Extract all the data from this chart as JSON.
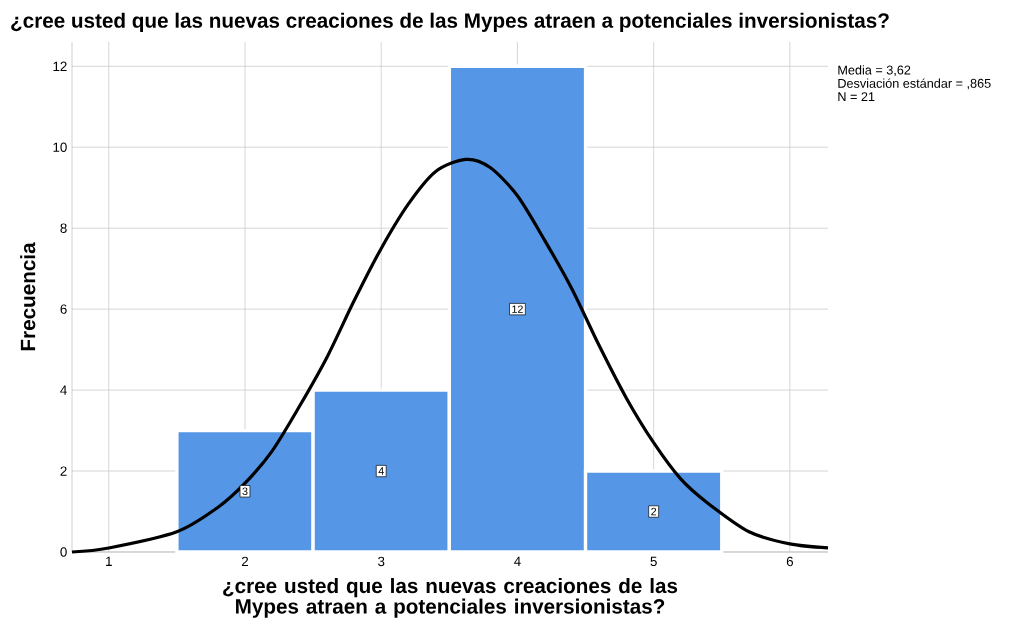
{
  "chart_data": {
    "type": "histogram",
    "title": "¿cree usted que las nuevas creaciones de las Mypes atraen a potenciales inversionistas?",
    "xlabel": "¿cree usted que las nuevas creaciones de las Mypes atraen a potenciales inversionistas?",
    "ylabel": "Frecuencia",
    "bins": [
      1.5,
      2.5,
      3.5,
      4.5,
      5.5
    ],
    "values": [
      3,
      4,
      12,
      2
    ],
    "color": "#5596e6",
    "value_labels": [
      "3",
      "4",
      "12",
      "2"
    ],
    "series": [
      {
        "type": "line",
        "color": "#000000",
        "x": [
          0.73,
          1.0,
          1.5,
          1.8,
          2.0,
          2.2,
          2.4,
          2.6,
          2.8,
          3.0,
          3.2,
          3.4,
          3.62,
          3.8,
          4.0,
          4.2,
          4.4,
          4.6,
          4.8,
          5.0,
          5.2,
          5.4,
          5.7,
          6.0,
          6.28
        ],
        "values": [
          0.0,
          0.1,
          0.5,
          1.1,
          1.7,
          2.5,
          3.6,
          4.8,
          6.2,
          7.5,
          8.6,
          9.4,
          9.7,
          9.5,
          8.8,
          7.7,
          6.5,
          5.1,
          3.8,
          2.7,
          1.8,
          1.2,
          0.5,
          0.2,
          0.1
        ]
      }
    ],
    "xlim": [
      0.73,
      6.28
    ],
    "ylim": [
      0,
      12.6
    ],
    "xticks": [
      1,
      2,
      3,
      4,
      5,
      6
    ],
    "yticks": [
      0,
      2,
      4,
      6,
      8,
      10,
      12
    ],
    "grid": true,
    "annotations": [
      "Media = 3,62",
      "Desviación estándar = ,865",
      "N = 21"
    ]
  }
}
